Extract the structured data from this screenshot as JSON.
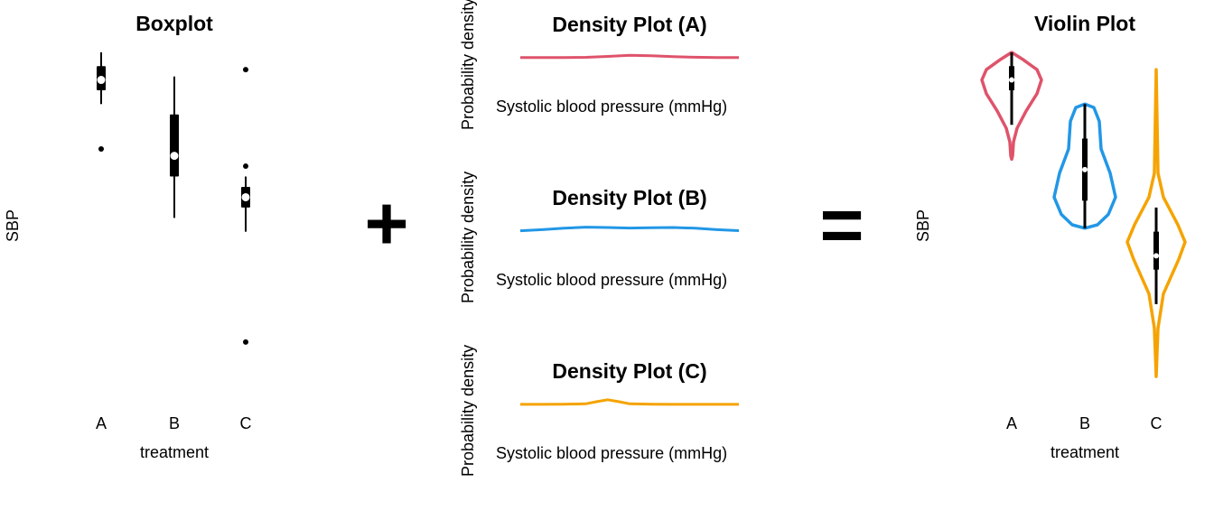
{
  "boxplot": {
    "title": "Boxplot",
    "xlabel": "treatment",
    "ylabel": "SBP",
    "categories": [
      "A",
      "B",
      "C"
    ]
  },
  "density": [
    {
      "title": "Density Plot (A)",
      "xlabel": "Systolic blood pressure (mmHg)",
      "ylabel": "Probability density",
      "color": "#DF536B"
    },
    {
      "title": "Density Plot (B)",
      "xlabel": "Systolic blood pressure (mmHg)",
      "ylabel": "Probability density",
      "color": "#2297E6"
    },
    {
      "title": "Density Plot (C)",
      "xlabel": "Systolic blood pressure (mmHg)",
      "ylabel": "Probability density",
      "color": "#F5A300"
    }
  ],
  "violin": {
    "title": "Violin Plot",
    "xlabel": "treatment",
    "ylabel": "SBP",
    "categories": [
      "A",
      "B",
      "C"
    ],
    "colors": [
      "#DF536B",
      "#2297E6",
      "#F5A300"
    ]
  },
  "operators": {
    "plus": "+",
    "equals": "="
  },
  "chart_data": [
    {
      "type": "boxplot",
      "title": "Boxplot",
      "xlabel": "treatment",
      "ylabel": "SBP",
      "categories": [
        "A",
        "B",
        "C"
      ],
      "ylim": [
        0,
        100
      ],
      "stats": [
        {
          "category": "A",
          "whisker_low": 85,
          "q1": 89,
          "median": 92,
          "q3": 96,
          "whisker_high": 100,
          "outliers": [
            72
          ]
        },
        {
          "category": "B",
          "whisker_low": 52,
          "q1": 64,
          "median": 70,
          "q3": 82,
          "whisker_high": 93,
          "outliers": []
        },
        {
          "category": "C",
          "whisker_low": 48,
          "q1": 55,
          "median": 58,
          "q3": 61,
          "whisker_high": 64,
          "outliers": [
            95,
            67,
            16
          ]
        }
      ]
    },
    {
      "type": "line",
      "title": "Density Plot (A)",
      "xlabel": "Systolic blood pressure (mmHg)",
      "ylabel": "Probability density",
      "color": "#DF536B",
      "x": [
        0,
        0.1,
        0.2,
        0.3,
        0.4,
        0.5,
        0.6,
        0.7,
        0.8,
        0.9,
        1.0
      ],
      "y": [
        0.05,
        0.05,
        0.06,
        0.1,
        0.3,
        0.55,
        0.45,
        0.25,
        0.12,
        0.06,
        0.05
      ]
    },
    {
      "type": "line",
      "title": "Density Plot (B)",
      "xlabel": "Systolic blood pressure (mmHg)",
      "ylabel": "Probability density",
      "color": "#2297E6",
      "x": [
        0,
        0.1,
        0.2,
        0.3,
        0.4,
        0.5,
        0.6,
        0.7,
        0.8,
        0.9,
        1.0
      ],
      "y": [
        0.05,
        0.2,
        0.4,
        0.55,
        0.5,
        0.42,
        0.48,
        0.5,
        0.4,
        0.2,
        0.06
      ]
    },
    {
      "type": "line",
      "title": "Density Plot (C)",
      "xlabel": "Systolic blood pressure (mmHg)",
      "ylabel": "Probability density",
      "color": "#F5A300",
      "x": [
        0,
        0.1,
        0.2,
        0.3,
        0.35,
        0.4,
        0.45,
        0.5,
        0.6,
        0.7,
        0.8,
        0.9,
        1.0
      ],
      "y": [
        0.02,
        0.02,
        0.03,
        0.1,
        0.45,
        0.75,
        0.45,
        0.1,
        0.03,
        0.02,
        0.02,
        0.02,
        0.02
      ]
    },
    {
      "type": "violin",
      "title": "Violin Plot",
      "xlabel": "treatment",
      "ylabel": "SBP",
      "categories": [
        "A",
        "B",
        "C"
      ],
      "ylim": [
        0,
        100
      ]
    }
  ]
}
